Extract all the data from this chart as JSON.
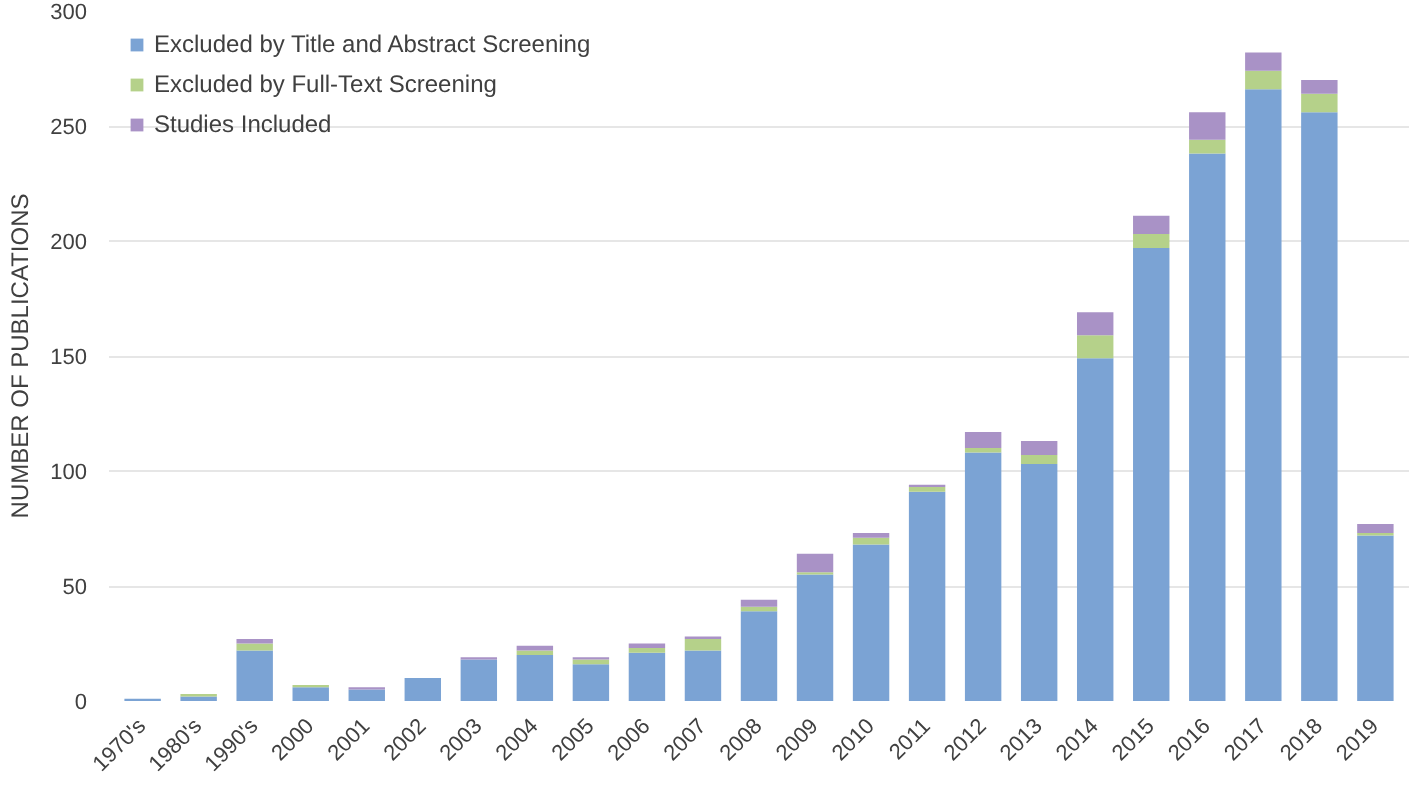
{
  "chart_data": {
    "type": "bar",
    "stacked": true,
    "ylabel": "NUMBER OF PUBLICATIONS",
    "categories": [
      "1970's",
      "1980's",
      "1990's",
      "2000",
      "2001",
      "2002",
      "2003",
      "2004",
      "2005",
      "2006",
      "2007",
      "2008",
      "2009",
      "2010",
      "2011",
      "2012",
      "2013",
      "2014",
      "2015",
      "2016",
      "2017",
      "2018",
      "2019"
    ],
    "series": [
      {
        "name": "Excluded by Title and Abstract Screening",
        "color": "#7ba3d4",
        "values": [
          1,
          2,
          22,
          6,
          5,
          10,
          18,
          20,
          16,
          21,
          22,
          39,
          55,
          68,
          91,
          108,
          103,
          149,
          197,
          238,
          266,
          256,
          72
        ]
      },
      {
        "name": "Excluded by Full-Text Screening",
        "color": "#b5d18a",
        "values": [
          null,
          1,
          3,
          1,
          null,
          null,
          null,
          2,
          2,
          2,
          5,
          2,
          1,
          3,
          2,
          2,
          4,
          10,
          6,
          6,
          8,
          8,
          1
        ]
      },
      {
        "name": "Studies Included",
        "color": "#a992c6",
        "values": [
          null,
          null,
          2,
          null,
          1,
          null,
          1,
          2,
          1,
          2,
          1,
          3,
          8,
          2,
          1,
          7,
          6,
          10,
          8,
          12,
          8,
          6,
          4
        ]
      }
    ],
    "ylim": [
      0,
      300
    ],
    "yticks": [
      0,
      50,
      100,
      150,
      200,
      250,
      300
    ],
    "grid": "y",
    "legend": "top left"
  }
}
